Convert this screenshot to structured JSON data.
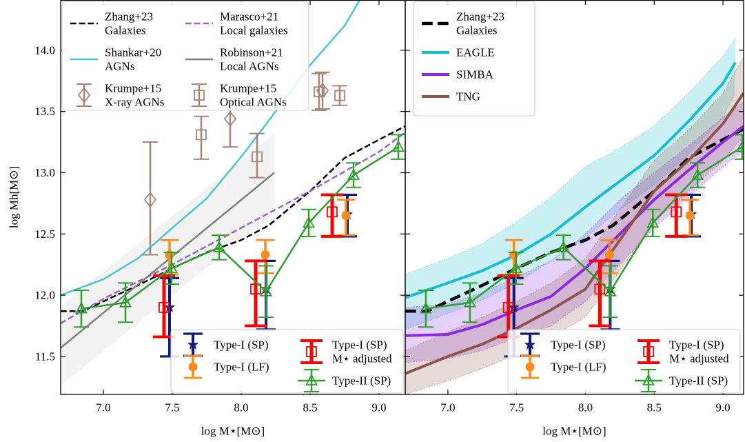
{
  "chart_data": [
    {
      "type": "line",
      "xlabel": "log M⋆[M⊙]",
      "ylabel": "log Mh[M⊙]",
      "xlim": [
        6.69,
        9.19
      ],
      "ylim": [
        11.19,
        14.41
      ],
      "xticks": [
        {
          "value": 7,
          "label": "7.0"
        },
        {
          "value": 7.5,
          "label": "7.5"
        },
        {
          "value": 8,
          "label": "8.0"
        },
        {
          "value": 8.5,
          "label": "8.5"
        },
        {
          "value": 9,
          "label": "9.0"
        }
      ],
      "yticks": [
        {
          "value": 11.5,
          "label": "11.5"
        },
        {
          "value": 12,
          "label": "12.0"
        },
        {
          "value": 12.5,
          "label": "12.5"
        },
        {
          "value": 13,
          "label": "13.0"
        },
        {
          "value": 13.5,
          "label": "13.5"
        },
        {
          "value": 14,
          "label": "14.0"
        }
      ],
      "legend_ncol": 2,
      "series": [
        {
          "name": [
            "Zhang+23",
            "Galaxies"
          ],
          "kind": "line",
          "color": "#000000",
          "linestyle": "dashed",
          "linewidth": 2.5,
          "legend": "upper left",
          "x": [
            6.69,
            6.85,
            7.0,
            7.25,
            7.5,
            7.75,
            8.0,
            8.2,
            8.5,
            8.75,
            9.0,
            9.19
          ],
          "values": [
            11.87,
            11.87,
            11.95,
            12.08,
            12.22,
            12.35,
            12.45,
            12.57,
            12.85,
            13.12,
            13.27,
            13.38
          ]
        },
        {
          "name": [
            "Shankar+20",
            "AGNs"
          ],
          "kind": "line",
          "color": "#4cc3d9",
          "linestyle": "solid",
          "linewidth": 2.5,
          "legend": "upper left",
          "x": [
            6.69,
            7.0,
            7.25,
            7.5,
            7.75,
            8.0,
            8.25,
            8.5,
            8.75,
            8.86
          ],
          "values": [
            12.0,
            12.13,
            12.3,
            12.55,
            12.79,
            13.13,
            13.5,
            13.88,
            14.2,
            14.41
          ]
        },
        {
          "name": [
            "Krumpe+15",
            "X-ray AGNs"
          ],
          "kind": "errorbar",
          "marker": "diamond",
          "color": "#a9827a",
          "linewidth": 2.5,
          "legend": "upper left",
          "x": [
            7.34,
            7.92,
            8.59
          ],
          "values": [
            12.78,
            13.44,
            13.67
          ],
          "err_minus": [
            0.45,
            0.23,
            0.15
          ],
          "err_plus": [
            0.47,
            0.17,
            0.15
          ]
        },
        {
          "name": [
            "Marasco+21",
            "Local galaxies"
          ],
          "kind": "line",
          "color": "#9467bd",
          "linestyle": "dashed",
          "linewidth": 2.5,
          "legend": "upper left",
          "x": [
            6.69,
            7.0,
            7.5,
            8.0,
            8.5,
            9.0,
            9.19
          ],
          "values": [
            11.77,
            11.97,
            12.25,
            12.55,
            12.85,
            13.17,
            13.33
          ]
        },
        {
          "name": [
            "Robinson+21",
            "Local AGNs"
          ],
          "kind": "band",
          "color": "#7f7f7f",
          "band_color": "#c8c8c8",
          "linestyle": "solid",
          "linewidth": 2.5,
          "legend": "upper left",
          "x": [
            6.69,
            8.24
          ],
          "values": [
            11.57,
            13.0
          ],
          "lower": [
            11.27,
            12.68
          ],
          "upper": [
            11.9,
            13.31
          ]
        },
        {
          "name": [
            "Krumpe+15",
            "Optical AGNs"
          ],
          "kind": "errorbar",
          "marker": "square",
          "color": "#a9827a",
          "linewidth": 2.5,
          "legend": "upper left",
          "x": [
            7.71,
            8.115,
            8.565,
            8.715
          ],
          "values": [
            13.31,
            13.13,
            13.66,
            13.63
          ],
          "err_minus": [
            0.2,
            0.17,
            0.15,
            0.08
          ],
          "err_plus": [
            0.15,
            0.19,
            0.15,
            0.08
          ]
        },
        {
          "name": [
            "Type-I (SP)"
          ],
          "kind": "errorbar",
          "marker": "star",
          "color": "#0a1a80",
          "linewidth": 4,
          "legend": "lower right",
          "x": [
            7.48,
            8.18,
            8.77
          ],
          "values": [
            11.9,
            12.05,
            12.66
          ],
          "err_minus": [
            0.4,
            0.33,
            0.18
          ],
          "err_plus": [
            0.24,
            0.23,
            0.16
          ]
        },
        {
          "name": [
            "Type-I (LF)"
          ],
          "kind": "errorbar",
          "marker": "circle",
          "color": "#ff8c1a",
          "linewidth": 3.5,
          "legend": "lower right",
          "x": [
            7.48,
            8.175,
            8.76
          ],
          "values": [
            12.33,
            12.33,
            12.65
          ],
          "err_minus": [
            0.16,
            0.15,
            0.16
          ],
          "err_plus": [
            0.12,
            0.12,
            0.13
          ]
        },
        {
          "name": [
            "Type-I (SP)",
            "M⋆ adjusted"
          ],
          "kind": "errorbar",
          "marker": "square",
          "color": "#ff0000",
          "linewidth": 5,
          "legend": "lower right",
          "x": [
            7.44,
            8.105,
            8.66
          ],
          "values": [
            11.9,
            12.05,
            12.68
          ],
          "err_minus": [
            0.24,
            0.3,
            0.2
          ],
          "err_plus": [
            0.26,
            0.23,
            0.14
          ]
        },
        {
          "name": [
            "Type-II (SP)"
          ],
          "kind": "errorbar",
          "marker": "triangle",
          "color": "#2ca02c",
          "linewidth": 2.5,
          "linestyle": "solid",
          "legend": "lower right",
          "x": [
            6.84,
            7.16,
            7.495,
            7.84,
            8.18,
            8.49,
            8.815,
            9.14
          ],
          "values": [
            11.89,
            11.94,
            12.22,
            12.39,
            12.03,
            12.59,
            12.98,
            13.21
          ],
          "err_minus": [
            0.15,
            0.16,
            0.13,
            0.1,
            0.21,
            0.11,
            0.1,
            0.1
          ],
          "err_plus": [
            0.15,
            0.16,
            0.13,
            0.1,
            0.21,
            0.11,
            0.1,
            0.1
          ]
        }
      ]
    },
    {
      "type": "line",
      "xlabel": "log M⋆[M⊙]",
      "xlim": [
        6.69,
        9.15
      ],
      "ylim": [
        11.19,
        14.41
      ],
      "xticks": [
        {
          "value": 7,
          "label": "7.0"
        },
        {
          "value": 7.5,
          "label": "7.5"
        },
        {
          "value": 8,
          "label": "8.0"
        },
        {
          "value": 8.5,
          "label": "8.5"
        },
        {
          "value": 9,
          "label": "9.0"
        }
      ],
      "yticks": [
        11.5,
        12,
        12.5,
        13,
        13.5,
        14
      ],
      "legend_ncol": 1,
      "series": [
        {
          "name": [
            "Zhang+23",
            "Galaxies"
          ],
          "kind": "line",
          "color": "#000000",
          "linestyle": "dashed",
          "linewidth": 4.5,
          "legend": "upper left",
          "x": [
            6.69,
            6.85,
            7.0,
            7.25,
            7.5,
            7.75,
            8.0,
            8.2,
            8.5,
            8.75,
            9.0,
            9.19
          ],
          "values": [
            11.87,
            11.87,
            11.95,
            12.08,
            12.22,
            12.35,
            12.45,
            12.57,
            12.85,
            13.12,
            13.27,
            13.38
          ]
        },
        {
          "name": [
            "EAGLE"
          ],
          "kind": "band",
          "color": "#17becf",
          "band_color": "#17becf",
          "linestyle": "solid",
          "linewidth": 4,
          "legend": "upper left",
          "x": [
            6.69,
            7.0,
            7.25,
            7.5,
            7.75,
            8.0,
            8.25,
            8.5,
            8.75,
            9.0,
            9.09
          ],
          "values": [
            11.98,
            12.1,
            12.2,
            12.33,
            12.5,
            12.72,
            12.93,
            13.14,
            13.42,
            13.73,
            13.9
          ],
          "lower": [
            11.72,
            11.85,
            11.96,
            12.1,
            12.28,
            12.47,
            12.7,
            12.9,
            13.15,
            13.45,
            13.65
          ],
          "upper": [
            12.17,
            12.3,
            12.42,
            12.6,
            12.8,
            13.05,
            13.2,
            13.38,
            13.65,
            13.95,
            14.1
          ]
        },
        {
          "name": [
            "SIMBA"
          ],
          "kind": "band",
          "color": "#8a2be2",
          "band_color": "#8a2be2",
          "linestyle": "solid",
          "linewidth": 4,
          "legend": "upper left",
          "x": [
            6.69,
            7.0,
            7.25,
            7.5,
            7.75,
            8.0,
            8.25,
            8.5,
            8.75,
            9.0,
            9.15
          ],
          "values": [
            11.67,
            11.68,
            11.76,
            11.88,
            11.99,
            12.22,
            12.5,
            12.78,
            13.02,
            13.25,
            13.38
          ],
          "lower": [
            11.45,
            11.48,
            11.55,
            11.65,
            11.75,
            11.95,
            12.25,
            12.55,
            12.8,
            13.05,
            13.18
          ],
          "upper": [
            11.9,
            11.93,
            12.02,
            12.15,
            12.28,
            12.5,
            12.78,
            13.0,
            13.22,
            13.45,
            13.58
          ]
        },
        {
          "name": [
            "TNG"
          ],
          "kind": "band",
          "color": "#8c564b",
          "band_color": "#8c564b",
          "linestyle": "solid",
          "linewidth": 4,
          "legend": "upper left",
          "x": [
            6.69,
            7.0,
            7.25,
            7.5,
            7.75,
            8.0,
            8.25,
            8.5,
            8.75,
            9.0,
            9.15
          ],
          "values": [
            11.36,
            11.5,
            11.6,
            11.73,
            11.88,
            12.05,
            12.45,
            12.85,
            13.1,
            13.4,
            13.65
          ],
          "lower": [
            11.19,
            11.3,
            11.4,
            11.52,
            11.66,
            11.82,
            12.2,
            12.6,
            12.85,
            13.1,
            13.3
          ],
          "upper": [
            11.55,
            11.7,
            11.82,
            11.95,
            12.1,
            12.3,
            12.7,
            13.1,
            13.35,
            13.65,
            13.95
          ]
        },
        {
          "name": [
            "Type-I (SP)"
          ],
          "kind": "errorbar",
          "marker": "star",
          "color": "#0a1a80",
          "linewidth": 4,
          "legend": "lower right",
          "x": [
            7.48,
            8.18,
            8.77
          ],
          "values": [
            11.9,
            12.05,
            12.66
          ],
          "err_minus": [
            0.4,
            0.33,
            0.18
          ],
          "err_plus": [
            0.24,
            0.23,
            0.16
          ]
        },
        {
          "name": [
            "Type-I (LF)"
          ],
          "kind": "errorbar",
          "marker": "circle",
          "color": "#ff8c1a",
          "linewidth": 3.5,
          "legend": "lower right",
          "x": [
            7.48,
            8.175,
            8.76
          ],
          "values": [
            12.33,
            12.33,
            12.65
          ],
          "err_minus": [
            0.16,
            0.15,
            0.16
          ],
          "err_plus": [
            0.12,
            0.12,
            0.13
          ]
        },
        {
          "name": [
            "Type-I (SP)",
            "M⋆ adjusted"
          ],
          "kind": "errorbar",
          "marker": "square",
          "color": "#ff0000",
          "linewidth": 5,
          "legend": "lower right",
          "x": [
            7.44,
            8.105,
            8.66
          ],
          "values": [
            11.9,
            12.05,
            12.68
          ],
          "err_minus": [
            0.24,
            0.3,
            0.2
          ],
          "err_plus": [
            0.26,
            0.23,
            0.14
          ]
        },
        {
          "name": [
            "Type-II (SP)"
          ],
          "kind": "errorbar",
          "marker": "triangle",
          "color": "#2ca02c",
          "linewidth": 2.5,
          "linestyle": "solid",
          "legend": "lower right",
          "x": [
            6.84,
            7.16,
            7.495,
            7.84,
            8.18,
            8.49,
            8.815,
            9.14
          ],
          "values": [
            11.89,
            11.94,
            12.22,
            12.39,
            12.03,
            12.59,
            12.98,
            13.21
          ],
          "err_minus": [
            0.15,
            0.16,
            0.13,
            0.1,
            0.21,
            0.11,
            0.1,
            0.1
          ],
          "err_plus": [
            0.15,
            0.16,
            0.13,
            0.1,
            0.21,
            0.11,
            0.1,
            0.1
          ]
        }
      ]
    }
  ]
}
